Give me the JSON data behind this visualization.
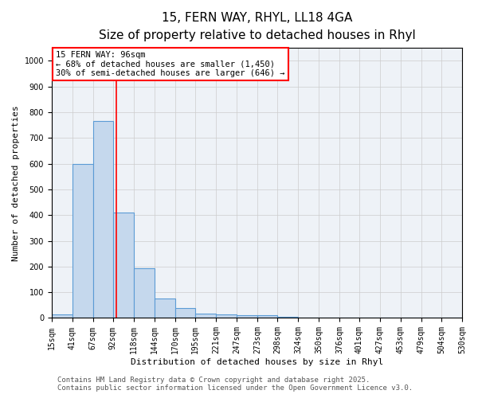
{
  "title1": "15, FERN WAY, RHYL, LL18 4GA",
  "title2": "Size of property relative to detached houses in Rhyl",
  "xlabel": "Distribution of detached houses by size in Rhyl",
  "ylabel": "Number of detached properties",
  "bin_edges": [
    15,
    41,
    67,
    92,
    118,
    144,
    170,
    195,
    221,
    247,
    273,
    298,
    324,
    350,
    376,
    401,
    427,
    453,
    479,
    504,
    530
  ],
  "bar_heights": [
    15,
    600,
    765,
    410,
    192,
    75,
    38,
    18,
    15,
    12,
    12,
    6,
    0,
    0,
    0,
    0,
    0,
    0,
    0,
    0
  ],
  "bar_color": "#c5d8ed",
  "bar_edge_color": "#5b9bd5",
  "red_line_x": 96,
  "annotation_text": "15 FERN WAY: 96sqm\n← 68% of detached houses are smaller (1,450)\n30% of semi-detached houses are larger (646) →",
  "ylim": [
    0,
    1050
  ],
  "yticks": [
    0,
    100,
    200,
    300,
    400,
    500,
    600,
    700,
    800,
    900,
    1000
  ],
  "grid_color": "#cccccc",
  "background_color": "#eef2f7",
  "footnote1": "Contains HM Land Registry data © Crown copyright and database right 2025.",
  "footnote2": "Contains public sector information licensed under the Open Government Licence v3.0.",
  "title1_fontsize": 11,
  "title2_fontsize": 9.5,
  "annotation_fontsize": 7.5,
  "axis_label_fontsize": 8,
  "tick_fontsize": 7
}
